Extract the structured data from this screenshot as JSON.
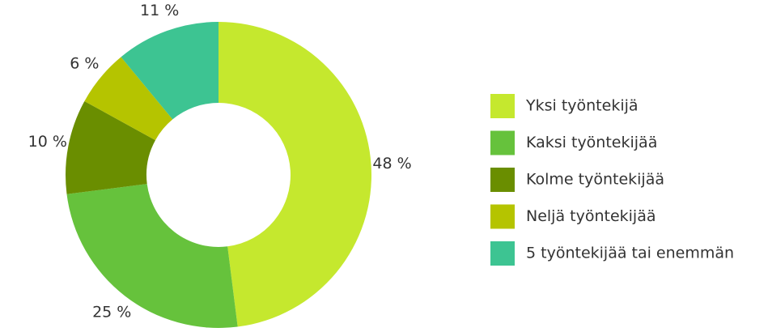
{
  "chart_data": {
    "type": "donut",
    "categories": [
      "Yksi työntekijä",
      "Kaksi työntekijää",
      "Kolme työntekijää",
      "Neljä työntekijää",
      "5 työntekijää tai enemmän"
    ],
    "values": [
      48,
      25,
      10,
      6,
      11
    ],
    "value_labels": [
      "48 %",
      "25 %",
      "10 %",
      "6 %",
      "11 %"
    ],
    "colors": [
      "#c5e82e",
      "#66c23c",
      "#6a8e00",
      "#b5c400",
      "#3dc492"
    ],
    "legend": "right"
  }
}
